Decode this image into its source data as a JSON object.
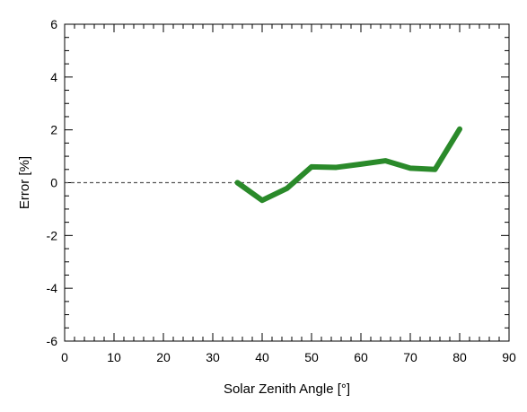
{
  "chart_data": {
    "type": "line",
    "xlabel": "Solar Zenith Angle [°]",
    "ylabel": "Error [%]",
    "xlim": [
      0,
      90
    ],
    "ylim": [
      -6,
      6
    ],
    "x_ticks": [
      0,
      10,
      20,
      30,
      40,
      50,
      60,
      70,
      80,
      90
    ],
    "y_ticks": [
      -6,
      -4,
      -2,
      0,
      2,
      4,
      6
    ],
    "grid": false,
    "reference_line": {
      "y": 0,
      "style": "dashed",
      "color": "#555555"
    },
    "series": [
      {
        "color": "#2a8a2a",
        "x": [
          35,
          40,
          45,
          50,
          55,
          60,
          65,
          70,
          75,
          80
        ],
        "y": [
          0.0,
          -0.67,
          -0.22,
          0.6,
          0.58,
          0.7,
          0.83,
          0.55,
          0.5,
          2.03
        ]
      }
    ]
  }
}
